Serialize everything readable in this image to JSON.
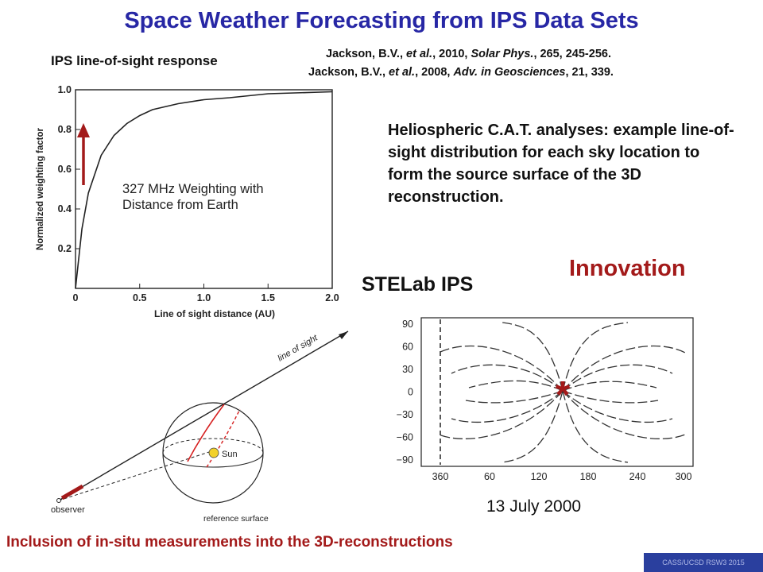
{
  "title": "Space Weather Forecasting from IPS Data Sets",
  "references": {
    "ref1": {
      "author": "Jackson, B.V., ",
      "etal": "et al.",
      "mid": ", 2010, ",
      "journal": "Solar Phys.",
      "rest": ", 265, 245-256."
    },
    "ref2": {
      "author": "Jackson, B.V., ",
      "etal": "et al.",
      "mid": ", 2008, ",
      "journal": "Adv. in Geosciences",
      "rest": ", 21, 339."
    }
  },
  "weighting_panel": {
    "heading": "IPS line-of-sight response",
    "annotation_line1": "327 MHz Weighting with",
    "annotation_line2": "Distance from Earth",
    "xlabel": "Line of sight  distance (AU)",
    "ylabel": "Normalized weighting factor",
    "x_ticks": [
      "0",
      "0.5",
      "1.0",
      "1.5",
      "2.0"
    ],
    "y_ticks": [
      "0.2",
      "0.4",
      "0.6",
      "0.8",
      "1.0"
    ]
  },
  "chart_data": {
    "type": "line",
    "xlabel": "Line of sight  distance (AU)",
    "ylabel": "Normalized weighting factor",
    "xlim": [
      0,
      2.0
    ],
    "ylim": [
      0,
      1.0
    ],
    "x": [
      0,
      0.05,
      0.1,
      0.2,
      0.3,
      0.4,
      0.5,
      0.6,
      0.8,
      1.0,
      1.2,
      1.5,
      2.0
    ],
    "y": [
      0,
      0.3,
      0.48,
      0.67,
      0.77,
      0.83,
      0.87,
      0.9,
      0.93,
      0.95,
      0.96,
      0.98,
      0.99
    ],
    "annotation": "327 MHz Weighting with Distance from Earth",
    "arrow_color": "#a31a1a"
  },
  "description": "Heliospheric C.A.T. analyses: example line-of-sight distribution for each sky location to form the source surface of the 3D reconstruction.",
  "innovation": "Innovation",
  "stelab_label": "STELab IPS",
  "geometry_diagram": {
    "line_of_sight": "line of sight",
    "sun": "Sun",
    "observer": "observer",
    "reference_surface": "reference surface"
  },
  "map_panel": {
    "y_ticks": [
      "90",
      "60",
      "30",
      "0",
      "−30",
      "−60",
      "−90"
    ],
    "x_ticks": [
      "360",
      "60",
      "120",
      "180",
      "240",
      "300"
    ],
    "marker": "*",
    "date": "13 July 2000"
  },
  "bottom_caption": "Inclusion of in-situ measurements into the 3D-reconstructions",
  "footer": "CASS/UCSD  RSW3 2015",
  "colors": {
    "title": "#2727a5",
    "accent_red": "#a31a1a",
    "footer_bg": "#2a3f9e"
  }
}
